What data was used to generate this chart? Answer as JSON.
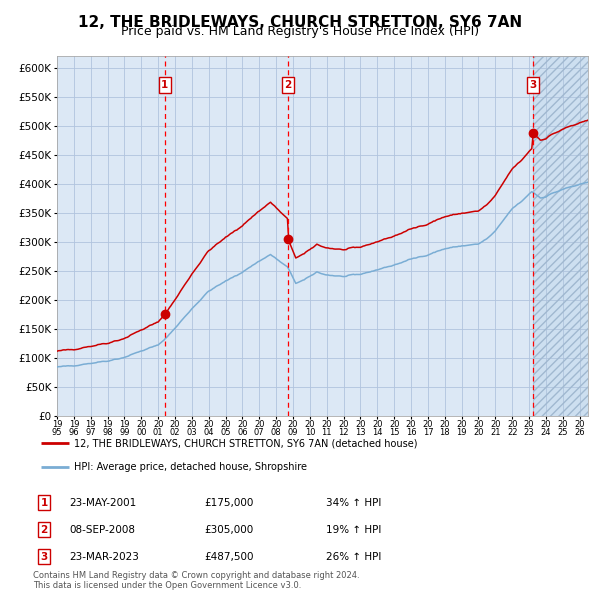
{
  "title": "12, THE BRIDLEWAYS, CHURCH STRETTON, SY6 7AN",
  "subtitle": "Price paid vs. HM Land Registry's House Price Index (HPI)",
  "title_fontsize": 11,
  "subtitle_fontsize": 9,
  "sales": [
    {
      "date": "2001-05-23",
      "price": 175000,
      "label": "1",
      "pct": "34% ↑ HPI",
      "display_date": "23-MAY-2001"
    },
    {
      "date": "2008-09-08",
      "price": 305000,
      "label": "2",
      "pct": "19% ↑ HPI",
      "display_date": "08-SEP-2008"
    },
    {
      "date": "2023-03-23",
      "price": 487500,
      "label": "3",
      "pct": "26% ↑ HPI",
      "display_date": "23-MAR-2023"
    }
  ],
  "hpi_line_color": "#7aadd4",
  "price_line_color": "#cc0000",
  "sale_dot_color": "#cc0000",
  "dashed_line_color": "#ff0000",
  "background_color": "#ffffff",
  "plot_bg_color": "#dce8f5",
  "grid_color": "#b0c4de",
  "legend_label_red": "12, THE BRIDLEWAYS, CHURCH STRETTON, SY6 7AN (detached house)",
  "legend_label_blue": "HPI: Average price, detached house, Shropshire",
  "footnote": "Contains HM Land Registry data © Crown copyright and database right 2024.\nThis data is licensed under the Open Government Licence v3.0.",
  "ylim": [
    0,
    620000
  ],
  "yticks": [
    0,
    50000,
    100000,
    150000,
    200000,
    250000,
    300000,
    350000,
    400000,
    450000,
    500000,
    550000,
    600000
  ],
  "xlim_start": "1995-01-01",
  "xlim_end": "2026-07-01"
}
